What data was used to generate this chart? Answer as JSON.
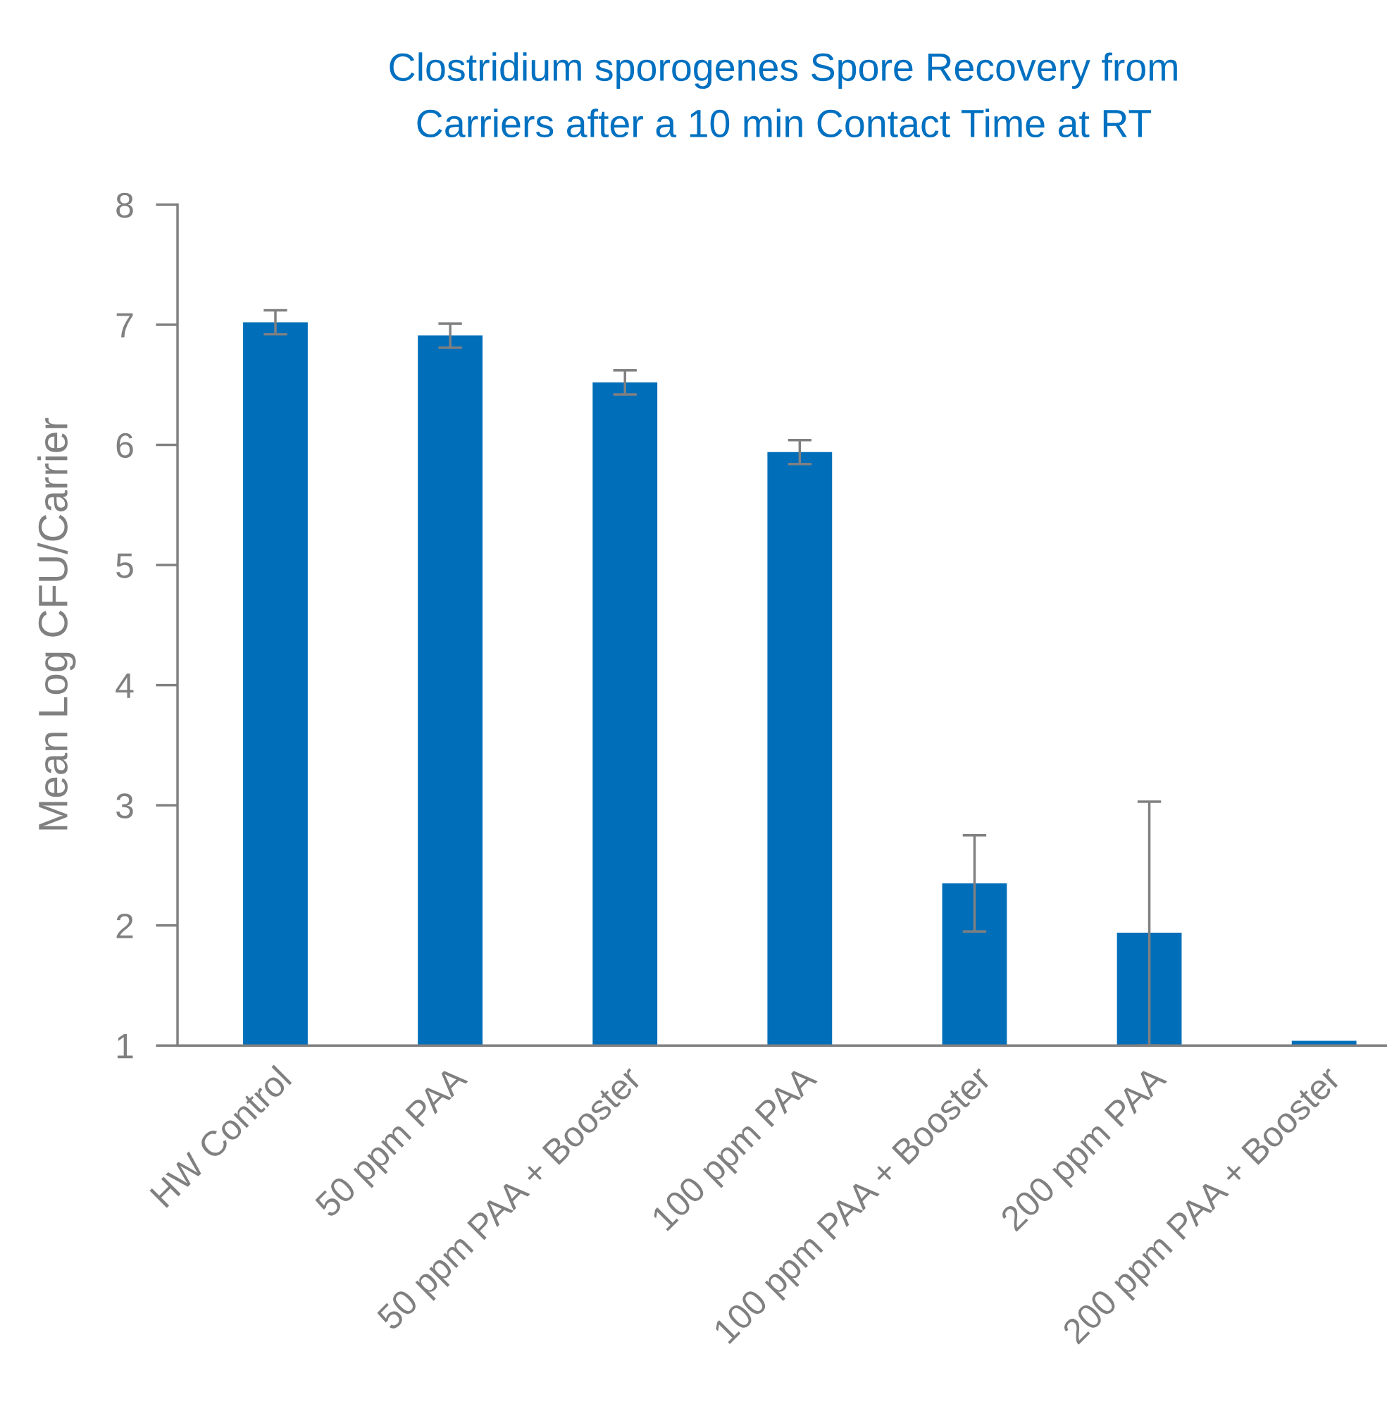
{
  "chart_data": {
    "type": "bar",
    "title": "Clostridium sporogenes Spore Recovery from\nCarriers after a 10 min Contact Time at RT",
    "ylabel": "Mean Log CFU/Carrier",
    "categories": [
      "HW Control",
      "50 ppm PAA",
      "50 ppm PAA + Booster",
      "100 ppm PAA",
      "100 ppm PAA + Booster",
      "200 ppm PAA",
      "200 ppm PAA + Booster"
    ],
    "values": [
      7.02,
      6.91,
      6.52,
      5.94,
      2.35,
      1.94,
      1.04
    ],
    "errors": [
      0.1,
      0.1,
      0.1,
      0.1,
      0.4,
      [
        1.0,
        3.03
      ],
      null
    ],
    "color": "#006eb8",
    "ylim": [
      1,
      8
    ],
    "yticks": [
      1,
      2,
      3,
      4,
      5,
      6,
      7,
      8
    ],
    "grid": false
  }
}
